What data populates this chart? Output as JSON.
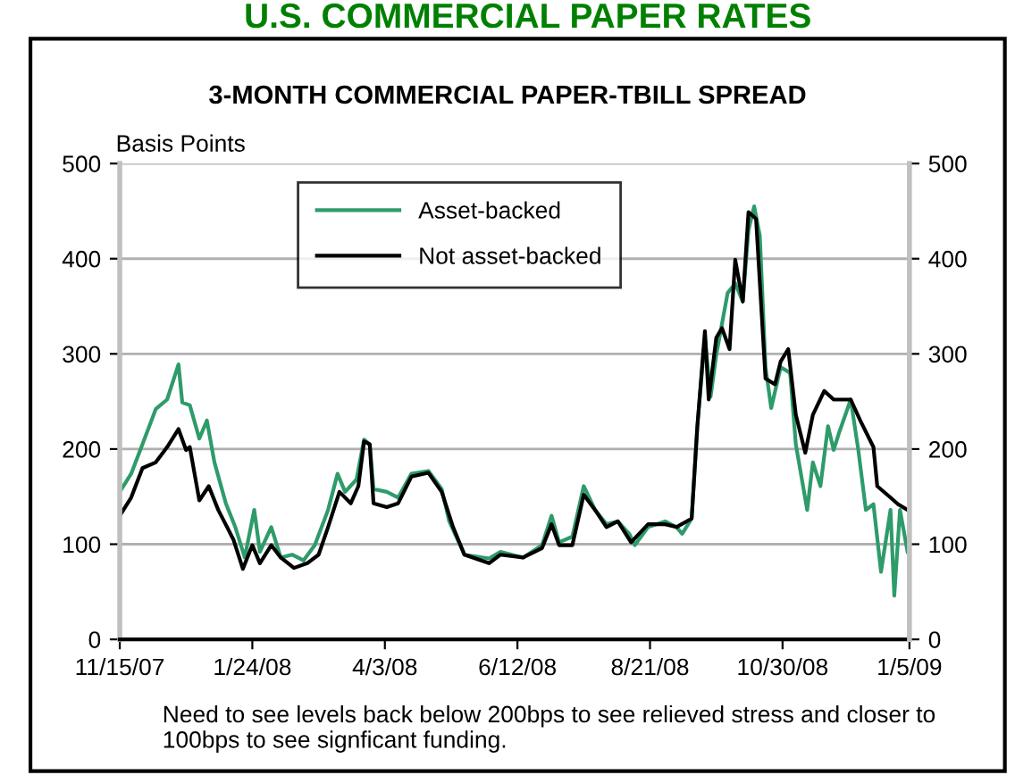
{
  "chart_data": {
    "type": "line",
    "title": "U.S. COMMERCIAL PAPER RATES",
    "subtitle": "3-MONTH COMMERCIAL PAPER-TBILL SPREAD",
    "ylabel": "Basis Points",
    "annotations": [
      "Need to see levels back below 200bps to see relieved stress and closer to 100bps to see signficant funding."
    ],
    "series": [
      {
        "name": "Asset-backed",
        "color": "#2e9b6a",
        "x": [
          "2007-11-15",
          "2007-11-21",
          "2007-11-27",
          "2007-12-04",
          "2007-12-10",
          "2007-12-16",
          "2007-12-18",
          "2007-12-22",
          "2007-12-27",
          "2007-12-31",
          "2008-01-04",
          "2008-01-10",
          "2008-01-15",
          "2008-01-20",
          "2008-01-25",
          "2008-01-28",
          "2008-02-03",
          "2008-02-08",
          "2008-02-14",
          "2008-02-20",
          "2008-02-26",
          "2008-03-04",
          "2008-03-09",
          "2008-03-13",
          "2008-03-19",
          "2008-03-23",
          "2008-03-26",
          "2008-03-28",
          "2008-04-04",
          "2008-04-10",
          "2008-04-17",
          "2008-04-26",
          "2008-05-03",
          "2008-05-07",
          "2008-05-15",
          "2008-05-28",
          "2008-06-03",
          "2008-06-15",
          "2008-06-25",
          "2008-06-30",
          "2008-07-04",
          "2008-07-11",
          "2008-07-17",
          "2008-07-23",
          "2008-07-29",
          "2008-08-04",
          "2008-08-10",
          "2008-08-13",
          "2008-08-20",
          "2008-08-29",
          "2008-09-04",
          "2008-09-07",
          "2008-09-12",
          "2008-09-15",
          "2008-09-19",
          "2008-09-22",
          "2008-09-25",
          "2008-10-01",
          "2008-10-05",
          "2008-10-09",
          "2008-10-12",
          "2008-10-15",
          "2008-10-18",
          "2008-10-21",
          "2008-10-24",
          "2008-10-29",
          "2008-11-03",
          "2008-11-06",
          "2008-11-12",
          "2008-11-15",
          "2008-11-19",
          "2008-11-23",
          "2008-11-26",
          "2008-11-29",
          "2008-12-05",
          "2008-12-09",
          "2008-12-13",
          "2008-12-17",
          "2008-12-21",
          "2008-12-26",
          "2008-12-28",
          "2008-12-31",
          "2009-01-04"
        ],
        "values": [
          155,
          174,
          205,
          242,
          252,
          289,
          249,
          246,
          211,
          230,
          186,
          143,
          118,
          86,
          136,
          92,
          118,
          86,
          89,
          83,
          99,
          136,
          174,
          155,
          168,
          210,
          205,
          158,
          155,
          149,
          174,
          177,
          158,
          124,
          89,
          85,
          92,
          86,
          99,
          130,
          102,
          108,
          161,
          136,
          121,
          124,
          111,
          99,
          118,
          124,
          118,
          111,
          127,
          224,
          317,
          255,
          299,
          364,
          374,
          355,
          430,
          455,
          424,
          286,
          243,
          286,
          280,
          205,
          136,
          186,
          161,
          224,
          199,
          218,
          252,
          199,
          136,
          142,
          71,
          136,
          46,
          136,
          92
        ]
      },
      {
        "name": "Not asset-backed",
        "color": "#000000",
        "x": [
          "2007-11-15",
          "2007-11-21",
          "2007-11-27",
          "2007-12-04",
          "2007-12-10",
          "2007-12-16",
          "2007-12-20",
          "2007-12-22",
          "2007-12-27",
          "2008-01-01",
          "2008-01-06",
          "2008-01-14",
          "2008-01-19",
          "2008-01-24",
          "2008-01-28",
          "2008-02-03",
          "2008-02-08",
          "2008-02-15",
          "2008-02-22",
          "2008-02-28",
          "2008-03-04",
          "2008-03-10",
          "2008-03-16",
          "2008-03-20",
          "2008-03-23",
          "2008-03-26",
          "2008-03-28",
          "2008-04-04",
          "2008-04-10",
          "2008-04-17",
          "2008-04-26",
          "2008-05-03",
          "2008-05-09",
          "2008-05-15",
          "2008-05-28",
          "2008-06-03",
          "2008-06-15",
          "2008-06-25",
          "2008-06-30",
          "2008-07-04",
          "2008-07-11",
          "2008-07-17",
          "2008-07-23",
          "2008-07-29",
          "2008-08-04",
          "2008-08-11",
          "2008-08-20",
          "2008-08-29",
          "2008-09-04",
          "2008-09-12",
          "2008-09-15",
          "2008-09-19",
          "2008-09-21",
          "2008-09-25",
          "2008-09-28",
          "2008-10-02",
          "2008-10-05",
          "2008-10-09",
          "2008-10-12",
          "2008-10-16",
          "2008-10-21",
          "2008-10-26",
          "2008-10-29",
          "2008-11-02",
          "2008-11-06",
          "2008-11-11",
          "2008-11-15",
          "2008-11-21",
          "2008-11-26",
          "2008-12-05",
          "2008-12-10",
          "2008-12-17",
          "2008-12-19",
          "2008-12-26",
          "2008-12-30",
          "2009-01-04"
        ],
        "values": [
          130,
          149,
          180,
          186,
          202,
          221,
          199,
          202,
          146,
          161,
          136,
          105,
          74,
          99,
          80,
          99,
          86,
          75,
          80,
          89,
          118,
          155,
          143,
          161,
          208,
          205,
          143,
          139,
          143,
          171,
          175,
          155,
          118,
          89,
          80,
          89,
          86,
          96,
          121,
          99,
          99,
          152,
          136,
          118,
          124,
          102,
          121,
          121,
          118,
          127,
          224,
          324,
          252,
          317,
          327,
          305,
          399,
          355,
          449,
          442,
          274,
          268,
          292,
          305,
          236,
          196,
          236,
          261,
          252,
          252,
          230,
          202,
          161,
          149,
          142,
          136
        ]
      }
    ],
    "xlim": [
      "2007-11-15",
      "2009-01-05"
    ],
    "xticks": [
      {
        "value": "2007-11-15",
        "label": "11/15/07"
      },
      {
        "value": "2008-01-24",
        "label": "1/24/08"
      },
      {
        "value": "2008-04-03",
        "label": "4/3/08"
      },
      {
        "value": "2008-06-12",
        "label": "6/12/08"
      },
      {
        "value": "2008-08-21",
        "label": "8/21/08"
      },
      {
        "value": "2008-10-30",
        "label": "10/30/08"
      },
      {
        "value": "2009-01-05",
        "label": "1/5/09"
      }
    ],
    "ylim": [
      0,
      500
    ],
    "yticks": [
      0,
      100,
      200,
      300,
      400,
      500
    ],
    "y2lim": [
      0,
      500
    ],
    "y2ticks": [
      0,
      100,
      200,
      300,
      400,
      500
    ],
    "grid": "y",
    "legend": "top",
    "line_style": "solid",
    "marker": "none"
  }
}
